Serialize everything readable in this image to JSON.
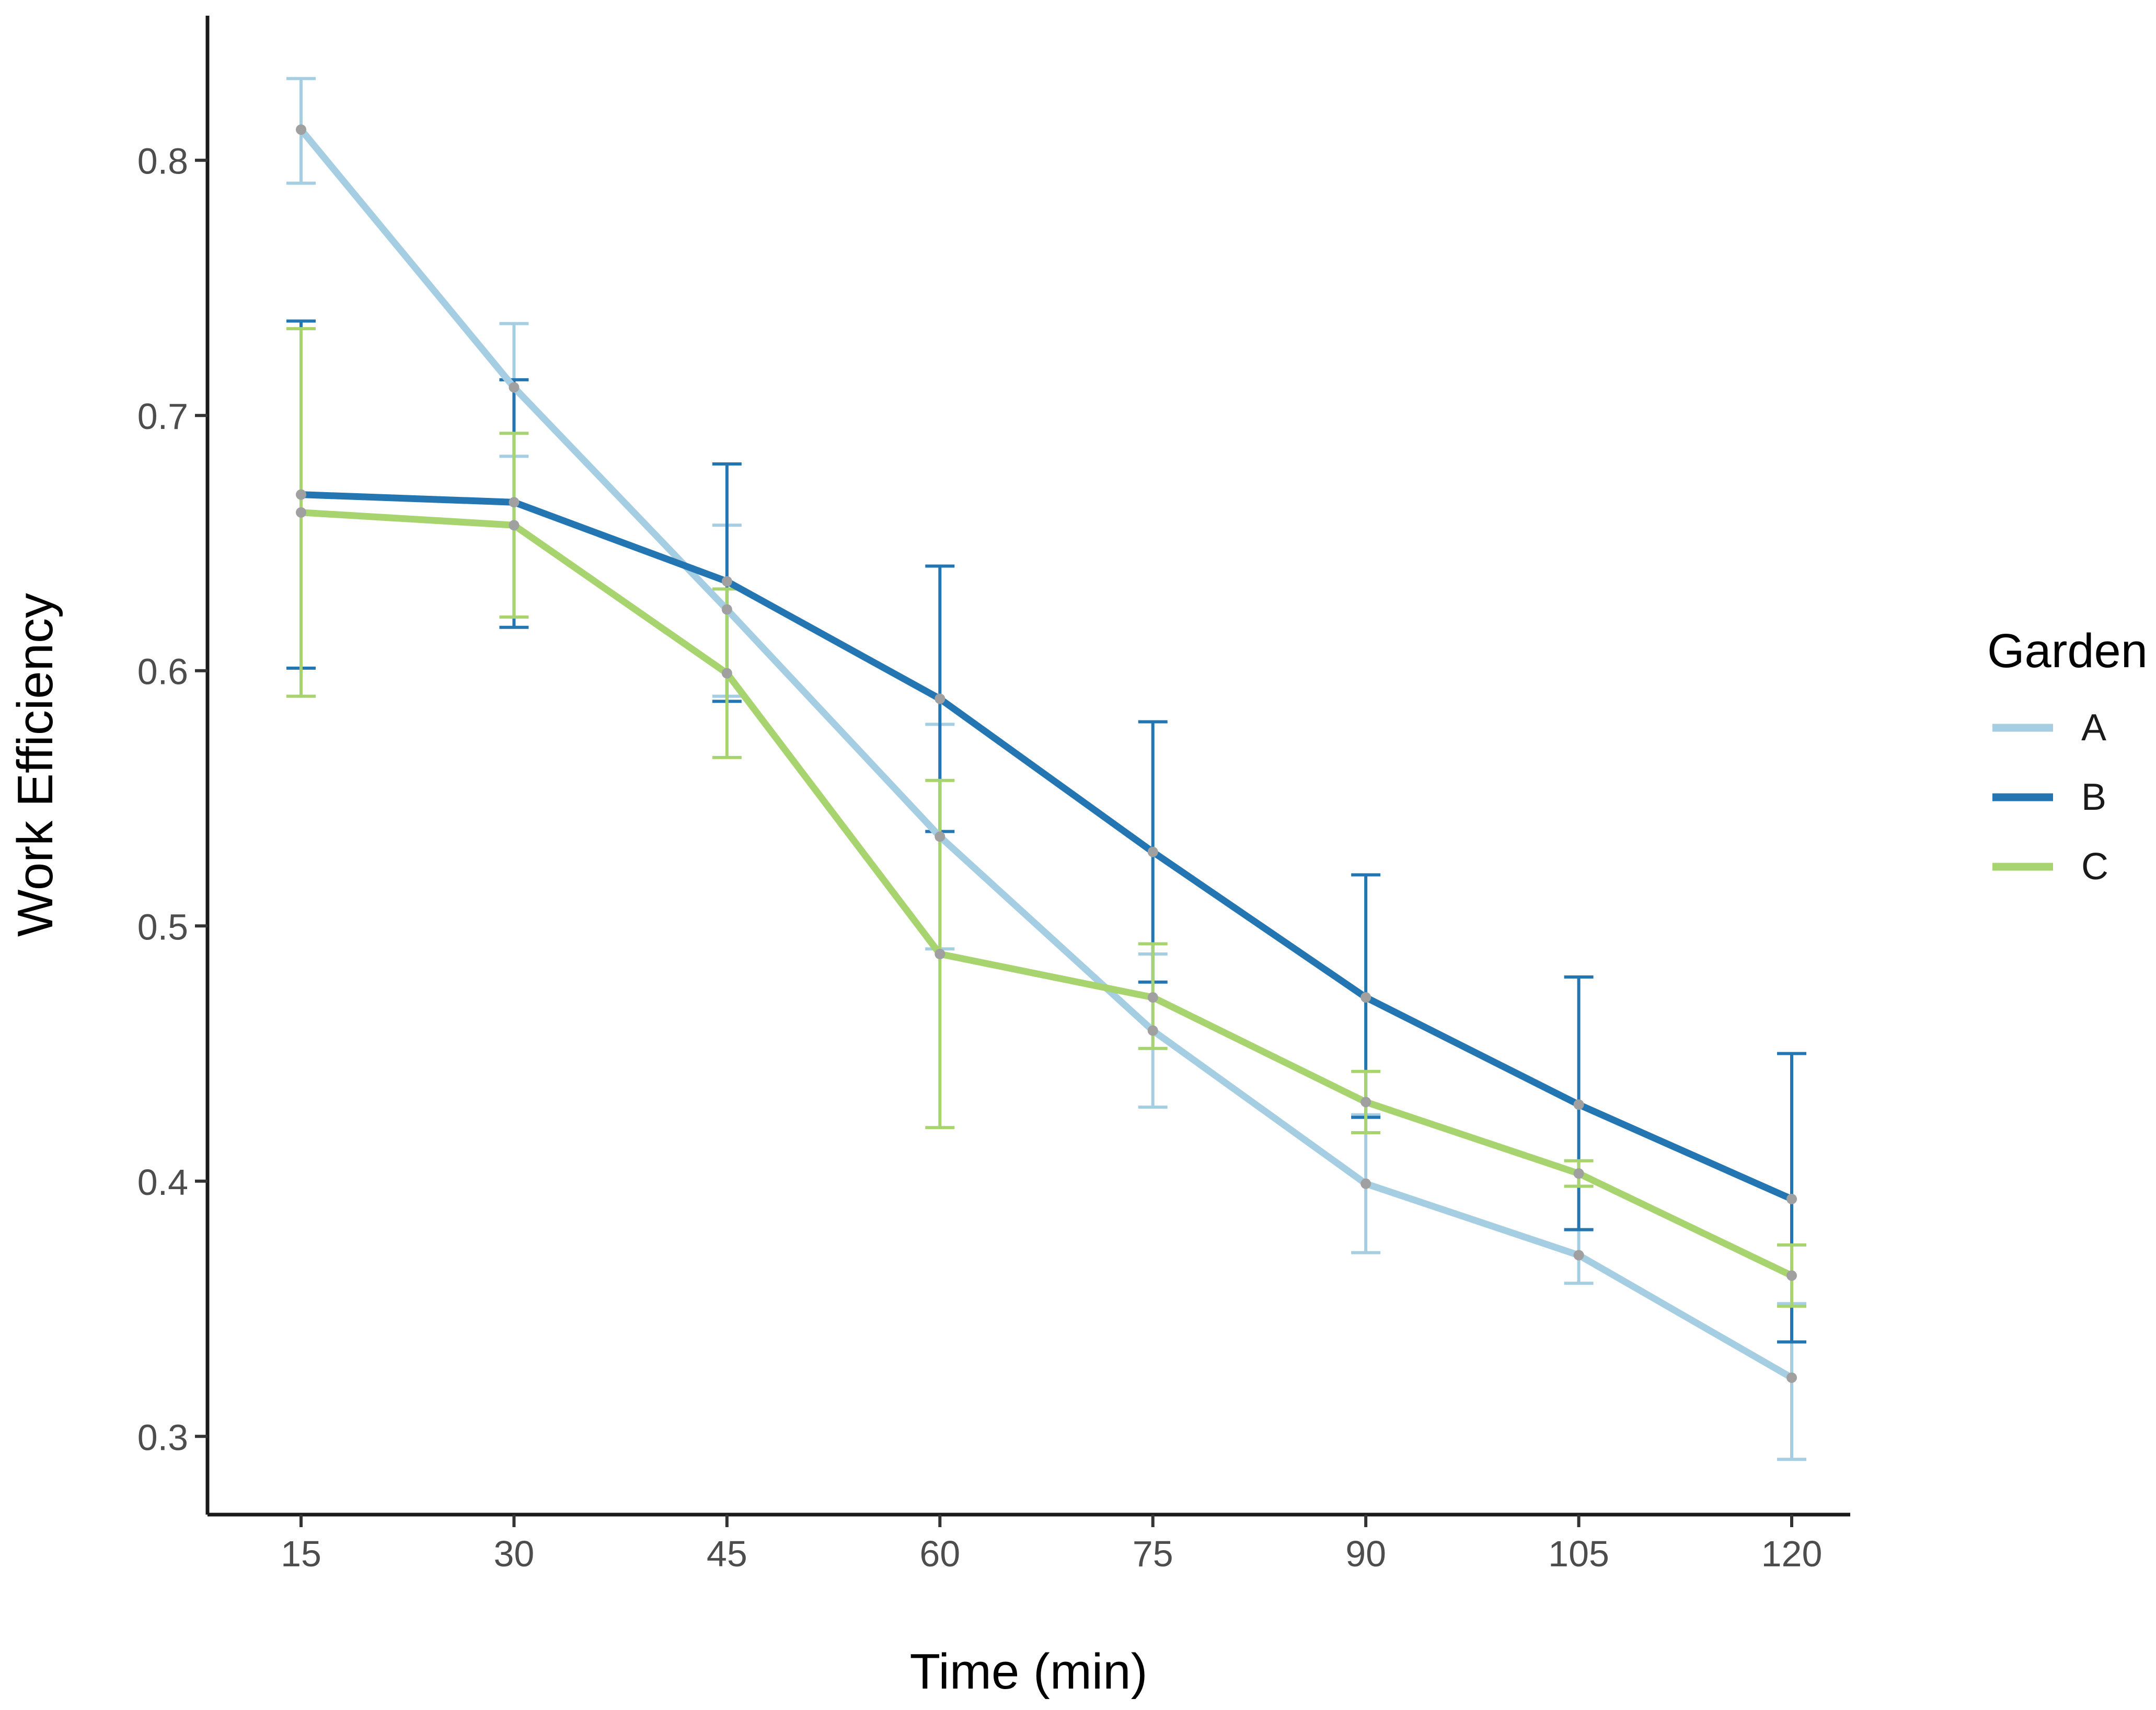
{
  "chart_data": {
    "type": "line",
    "title": "",
    "xlabel": "Time (min)",
    "ylabel": "Work Efficiency",
    "legend_title": "Garden",
    "legend_position": "right",
    "grid": false,
    "x": [
      15,
      30,
      45,
      60,
      75,
      90,
      105,
      120
    ],
    "xtick_labels": [
      "15",
      "30",
      "45",
      "60",
      "75",
      "90",
      "105",
      "120"
    ],
    "yticks": [
      0.3,
      0.4,
      0.5,
      0.6,
      0.7,
      0.8
    ],
    "ytick_labels": [
      "0.3",
      "0.4",
      "0.5",
      "0.6",
      "0.7",
      "0.8"
    ],
    "ylim": [
      0.27,
      0.86
    ],
    "xlim": [
      8,
      128
    ],
    "point_color": "#a0a0a0",
    "axis_color": "#1a1a1a",
    "tick_color": "#333333",
    "series": [
      {
        "name": "A",
        "color": "#a6cee3",
        "values": [
          0.812,
          0.711,
          0.624,
          0.535,
          0.459,
          0.399,
          0.371,
          0.323
        ],
        "err_low": [
          0.791,
          0.684,
          0.59,
          0.491,
          0.429,
          0.372,
          0.36,
          0.291
        ],
        "err_high": [
          0.832,
          0.736,
          0.657,
          0.579,
          0.489,
          0.426,
          0.381,
          0.352
        ]
      },
      {
        "name": "B",
        "color": "#2476b3",
        "values": [
          0.669,
          0.666,
          0.635,
          0.589,
          0.529,
          0.472,
          0.43,
          0.393
        ],
        "err_low": [
          0.601,
          0.617,
          0.588,
          0.537,
          0.478,
          0.425,
          0.381,
          0.337
        ],
        "err_high": [
          0.737,
          0.714,
          0.681,
          0.641,
          0.58,
          0.52,
          0.48,
          0.45
        ]
      },
      {
        "name": "C",
        "color": "#a8d46f",
        "values": [
          0.662,
          0.657,
          0.599,
          0.489,
          0.472,
          0.431,
          0.403,
          0.363
        ],
        "err_low": [
          0.59,
          0.621,
          0.566,
          0.421,
          0.452,
          0.419,
          0.398,
          0.351
        ],
        "err_high": [
          0.734,
          0.693,
          0.632,
          0.557,
          0.493,
          0.443,
          0.408,
          0.375
        ]
      }
    ]
  }
}
